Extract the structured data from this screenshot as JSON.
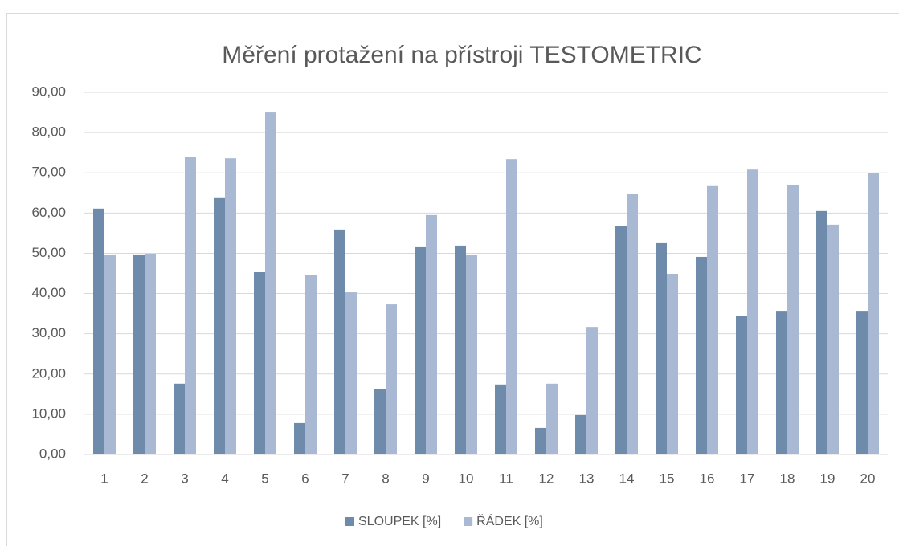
{
  "chart_data": {
    "type": "bar",
    "title": "Měření protažení na přístroji TESTOMETRIC",
    "categories": [
      "1",
      "2",
      "3",
      "4",
      "5",
      "6",
      "7",
      "8",
      "9",
      "10",
      "11",
      "12",
      "13",
      "14",
      "15",
      "16",
      "17",
      "18",
      "19",
      "20"
    ],
    "series": [
      {
        "name": "SLOUPEK [%]",
        "color": "#6f8bab",
        "values": [
          61.1,
          49.7,
          17.6,
          63.9,
          45.3,
          7.8,
          55.9,
          16.2,
          51.7,
          51.9,
          17.4,
          6.6,
          9.8,
          56.7,
          52.5,
          49.1,
          34.5,
          35.7,
          60.5,
          35.7
        ]
      },
      {
        "name": "ŘÁDEK [%]",
        "color": "#a9b9d3",
        "values": [
          49.7,
          49.9,
          74.0,
          73.6,
          85.0,
          44.7,
          40.3,
          37.3,
          59.5,
          49.5,
          73.4,
          17.6,
          31.7,
          64.7,
          44.9,
          66.7,
          70.8,
          66.9,
          57.1,
          70.0
        ]
      }
    ],
    "ylim": [
      0,
      90
    ],
    "yticks": [
      {
        "value": 0,
        "label": "0,00"
      },
      {
        "value": 10,
        "label": "10,00"
      },
      {
        "value": 20,
        "label": "20,00"
      },
      {
        "value": 30,
        "label": "30,00"
      },
      {
        "value": 40,
        "label": "40,00"
      },
      {
        "value": 50,
        "label": "50,00"
      },
      {
        "value": 60,
        "label": "60,00"
      },
      {
        "value": 70,
        "label": "70,00"
      },
      {
        "value": 80,
        "label": "80,00"
      },
      {
        "value": 90,
        "label": "90,00"
      }
    ],
    "grid": true,
    "legend": "bottom"
  }
}
